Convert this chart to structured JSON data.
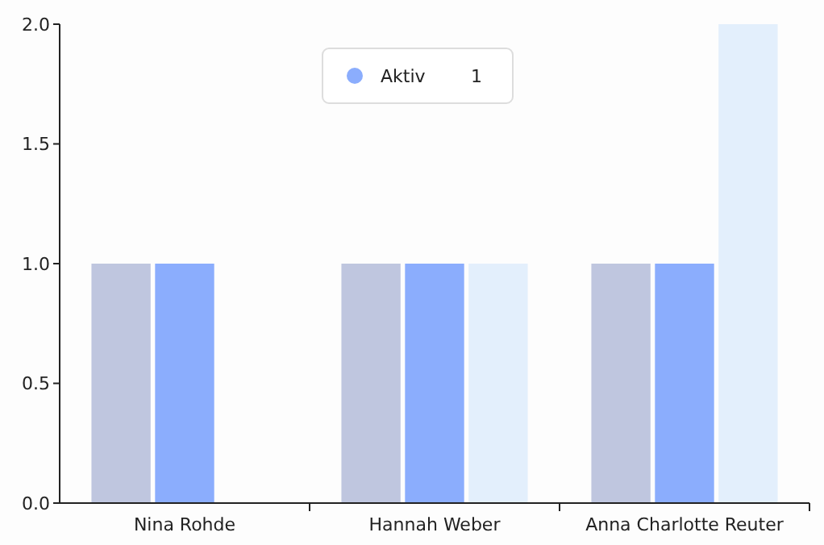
{
  "chart_data": {
    "type": "bar",
    "categories": [
      "Nina Rohde",
      "Hannah Weber",
      "Anna Charlotte Reuter"
    ],
    "series": [
      {
        "color": "#bfc6df",
        "values": [
          1,
          1,
          1
        ]
      },
      {
        "name": "Aktiv",
        "color": "#8badfd",
        "values": [
          1,
          1,
          1
        ]
      },
      {
        "color": "#e3effc",
        "values": [
          null,
          1,
          2
        ]
      }
    ],
    "ylim": [
      0,
      2
    ],
    "yticks": [
      {
        "value": 0,
        "label": "0.0"
      },
      {
        "value": 0.5,
        "label": "0.5"
      },
      {
        "value": 1,
        "label": "1.0"
      },
      {
        "value": 1.5,
        "label": "1.5"
      },
      {
        "value": 2,
        "label": "2.0"
      }
    ],
    "grid": false,
    "legend": "top",
    "annotations": [
      "1"
    ]
  }
}
